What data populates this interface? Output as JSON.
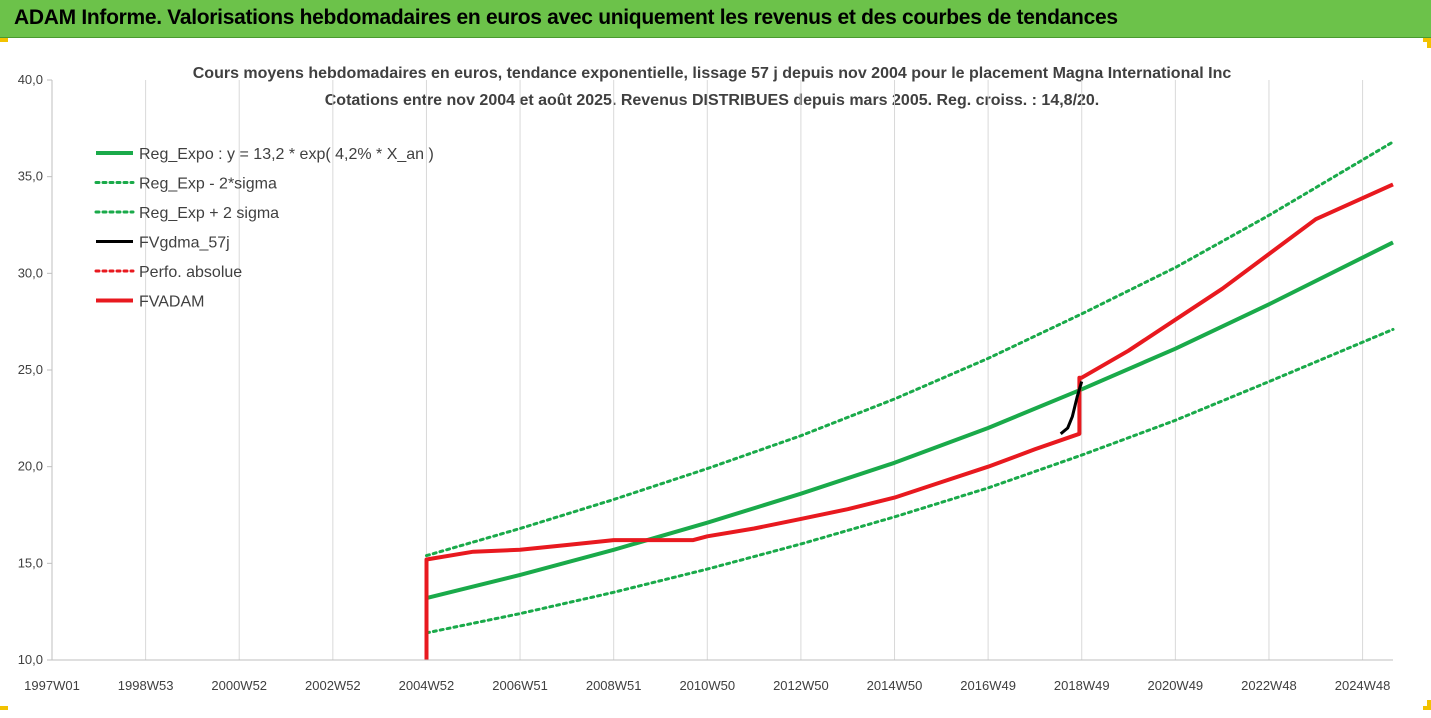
{
  "header": {
    "title": "ADAM Informe. Valorisations hebdomadaires en euros avec uniquement les revenus et des courbes de tendances"
  },
  "chart_data": {
    "type": "line",
    "title": "Cours moyens hebdomadaires en euros, tendance exponentielle, lissage 57 j depuis nov 2004 pour le placement Magna International Inc",
    "subtitle": "Cotations entre nov 2004 et août 2025. Revenus DISTRIBUES depuis mars 2005. Reg. croiss. : 14,8/20.",
    "xlabel": "",
    "ylabel": "",
    "ylim": [
      10,
      40
    ],
    "yticks": [
      "10,0",
      "15,0",
      "20,0",
      "25,0",
      "30,0",
      "35,0",
      "40,0"
    ],
    "xlim": [
      1997.0,
      2025.65
    ],
    "xticks": [
      {
        "label": "1997W01",
        "x": 1997.0
      },
      {
        "label": "1998W53",
        "x": 1999.0
      },
      {
        "label": "2000W52",
        "x": 2001.0
      },
      {
        "label": "2002W52",
        "x": 2003.0
      },
      {
        "label": "2004W52",
        "x": 2005.0
      },
      {
        "label": "2006W51",
        "x": 2007.0
      },
      {
        "label": "2008W51",
        "x": 2009.0
      },
      {
        "label": "2010W50",
        "x": 2011.0
      },
      {
        "label": "2012W50",
        "x": 2013.0
      },
      {
        "label": "2014W50",
        "x": 2015.0
      },
      {
        "label": "2016W49",
        "x": 2017.0
      },
      {
        "label": "2018W49",
        "x": 2019.0
      },
      {
        "label": "2020W49",
        "x": 2021.0
      },
      {
        "label": "2022W48",
        "x": 2023.0
      },
      {
        "label": "2024W48",
        "x": 2025.0
      }
    ],
    "grid": "vertical",
    "legend_position": "top-left",
    "series": [
      {
        "name": "Reg_Expo : y = 13,2 * exp( 4,2% *  X_an )",
        "color": "#1aaa4a",
        "style": "solid",
        "x": [
          2005.0,
          2007.0,
          2009.0,
          2011.0,
          2013.0,
          2015.0,
          2017.0,
          2019.0,
          2021.0,
          2023.0,
          2025.65
        ],
        "y": [
          13.2,
          14.4,
          15.7,
          17.1,
          18.6,
          20.2,
          22.0,
          24.0,
          26.1,
          28.4,
          31.6
        ]
      },
      {
        "name": "Reg_Exp - 2*sigma",
        "color": "#1aaa4a",
        "style": "dotted",
        "x": [
          2005.0,
          2007.0,
          2009.0,
          2011.0,
          2013.0,
          2015.0,
          2017.0,
          2019.0,
          2021.0,
          2023.0,
          2025.65
        ],
        "y": [
          11.4,
          12.4,
          13.5,
          14.7,
          16.0,
          17.4,
          18.9,
          20.6,
          22.4,
          24.4,
          27.1
        ]
      },
      {
        "name": "Reg_Exp + 2 sigma",
        "color": "#1aaa4a",
        "style": "dotted",
        "x": [
          2005.0,
          2007.0,
          2009.0,
          2011.0,
          2013.0,
          2015.0,
          2017.0,
          2019.0,
          2021.0,
          2023.0,
          2025.65
        ],
        "y": [
          15.4,
          16.8,
          18.3,
          19.9,
          21.6,
          23.5,
          25.6,
          27.9,
          30.3,
          33.0,
          36.8
        ]
      },
      {
        "name": "FVgdma_57j",
        "color": "#000000",
        "style": "solid",
        "x": [
          2018.55,
          2018.7,
          2018.8,
          2018.9,
          2019.0
        ],
        "y": [
          21.7,
          22.0,
          22.6,
          23.6,
          24.4
        ]
      },
      {
        "name": "Perfo. absolue",
        "color": "#e8191f",
        "style": "dotted",
        "x": [],
        "y": []
      },
      {
        "name": "FVADAM",
        "color": "#e8191f",
        "style": "solid",
        "x": [
          2005.0,
          2005.0,
          2006.0,
          2007.0,
          2008.0,
          2009.0,
          2010.0,
          2010.7,
          2011.0,
          2012.0,
          2013.0,
          2014.0,
          2015.0,
          2016.0,
          2017.0,
          2018.0,
          2018.95,
          2018.95,
          2019.0,
          2020.0,
          2021.0,
          2022.0,
          2023.0,
          2024.0,
          2025.65
        ],
        "y": [
          10.0,
          15.2,
          15.6,
          15.7,
          15.95,
          16.2,
          16.2,
          16.2,
          16.4,
          16.8,
          17.3,
          17.8,
          18.4,
          19.2,
          20.0,
          20.9,
          21.7,
          24.6,
          24.6,
          26.0,
          27.6,
          29.2,
          31.0,
          32.8,
          34.6
        ]
      }
    ]
  }
}
